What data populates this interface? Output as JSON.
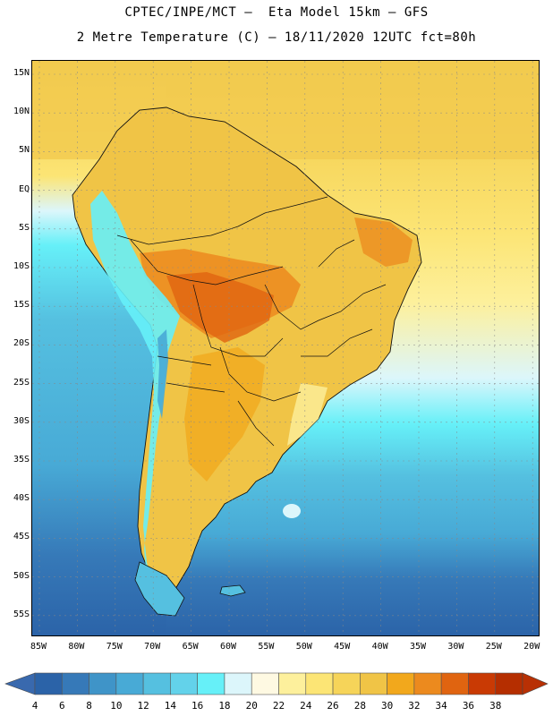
{
  "header": {
    "line1": "CPTEC/INPE/MCT –  Eta Model 15km – GFS",
    "line2": "2 Metre Temperature (C) – 18/11/2020 12UTC fct=80h"
  },
  "map": {
    "region": "South America",
    "variable": "2 Metre Temperature",
    "units": "C",
    "lat_labels": [
      "15N",
      "10N",
      "5N",
      "EQ",
      "5S",
      "10S",
      "15S",
      "20S",
      "25S",
      "30S",
      "35S",
      "40S",
      "45S",
      "50S",
      "55S"
    ],
    "lon_labels": [
      "85W",
      "80W",
      "75W",
      "70W",
      "65W",
      "60W",
      "55W",
      "50W",
      "45W",
      "40W",
      "35W",
      "30W",
      "25W",
      "20W"
    ]
  },
  "colorbar": {
    "labels": [
      "4",
      "6",
      "8",
      "10",
      "12",
      "14",
      "16",
      "18",
      "20",
      "22",
      "24",
      "26",
      "28",
      "30",
      "32",
      "34",
      "36",
      "38"
    ],
    "colors": [
      "#2b63a8",
      "#3679b8",
      "#3f94c8",
      "#48aad6",
      "#55c0e0",
      "#63d2ea",
      "#66f0f8",
      "#dcf6fb",
      "#fef9e2",
      "#fdf09c",
      "#fce575",
      "#f6d459",
      "#f0c446",
      "#f2a81c",
      "#ec8a1e",
      "#e06410",
      "#c93a04",
      "#b52e00"
    ],
    "low_arrow_color": "#3969ae",
    "high_arrow_color": "#b83004"
  },
  "palette": {
    "ocean_deep": "#2b63a8",
    "ocean_mid": "#48aad6",
    "ocean_cool": "#66f0f8",
    "land_warm": "#f0c446",
    "land_hot": "#e06410",
    "tropical_sea": "#fce575"
  }
}
